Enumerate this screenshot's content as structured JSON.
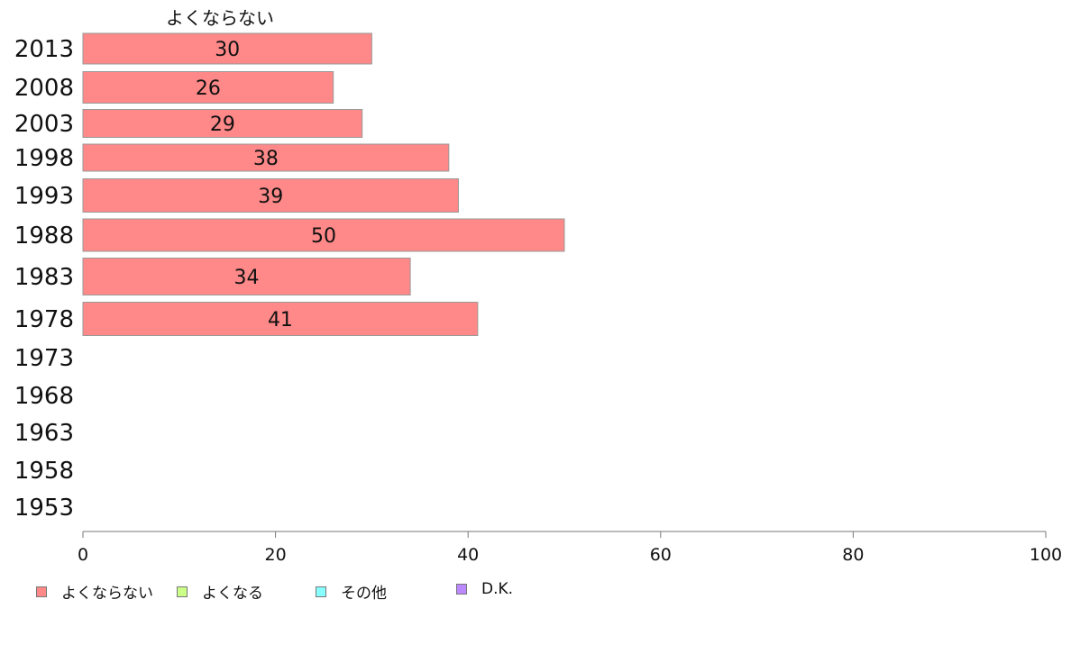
{
  "chart_data": {
    "type": "bar",
    "orientation": "horizontal",
    "series_title": "よくならない",
    "categories": [
      "2013",
      "2008",
      "2003",
      "1998",
      "1993",
      "1988",
      "1983",
      "1978",
      "1973",
      "1968",
      "1963",
      "1958",
      "1953"
    ],
    "series": [
      {
        "name": "よくならない",
        "color": "#ff8888",
        "values": [
          30,
          26,
          29,
          38,
          39,
          50,
          34,
          41,
          null,
          null,
          null,
          null,
          null
        ]
      }
    ],
    "xlim": [
      0,
      100
    ],
    "xticks": [
      0,
      20,
      40,
      60,
      80,
      100
    ],
    "grid": false,
    "legend_position": "bottom-left",
    "legend": [
      {
        "label": "よくならない",
        "color": "#ff8888"
      },
      {
        "label": "よくなる",
        "color": "#ccff88"
      },
      {
        "label": "その他",
        "color": "#88ffff"
      },
      {
        "label": "D.K.",
        "color": "#bb88ff"
      }
    ]
  }
}
